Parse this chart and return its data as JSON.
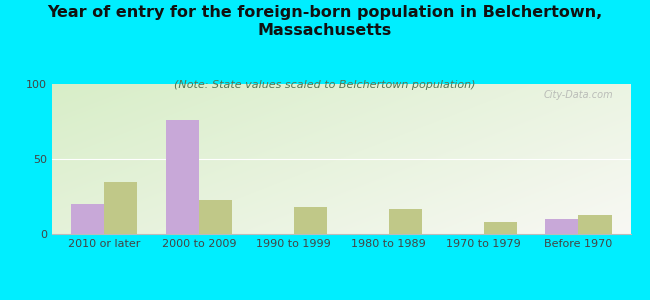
{
  "title": "Year of entry for the foreign-born population in Belchertown,\nMassachusetts",
  "subtitle": "(Note: State values scaled to Belchertown population)",
  "categories": [
    "2010 or later",
    "2000 to 2009",
    "1990 to 1999",
    "1980 to 1989",
    "1970 to 1979",
    "Before 1970"
  ],
  "belchertown_values": [
    20,
    76,
    0,
    0,
    0,
    10
  ],
  "massachusetts_values": [
    35,
    23,
    18,
    17,
    8,
    13
  ],
  "belchertown_color": "#c8a8d8",
  "massachusetts_color": "#c0c888",
  "background_color": "#00eeff",
  "ylim": [
    0,
    100
  ],
  "yticks": [
    0,
    50,
    100
  ],
  "bar_width": 0.35,
  "title_fontsize": 11.5,
  "subtitle_fontsize": 8,
  "axis_fontsize": 8,
  "legend_fontsize": 9,
  "watermark": "City-Data.com"
}
